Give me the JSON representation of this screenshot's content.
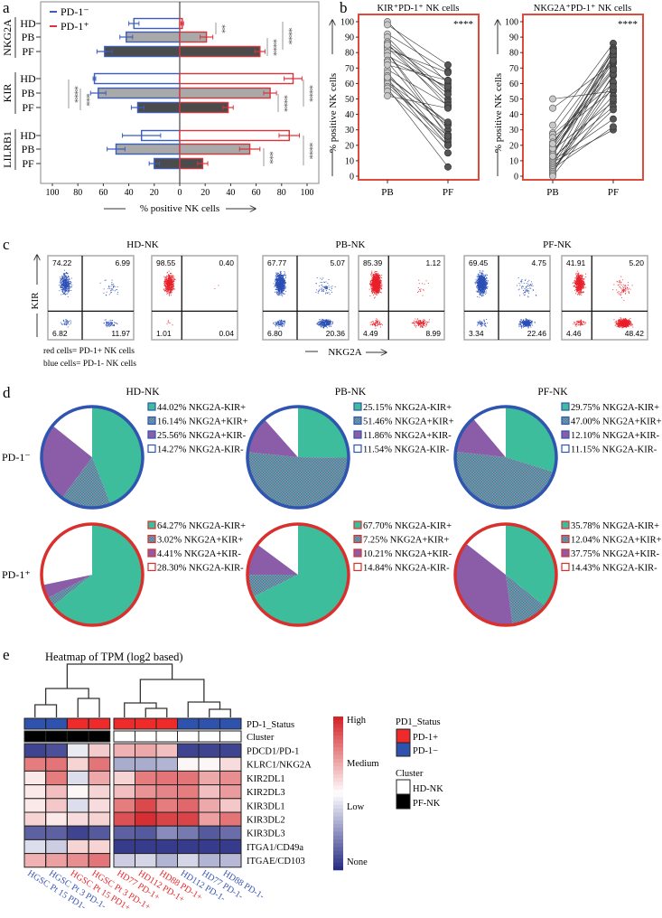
{
  "figure": {
    "panel_letters": [
      "a",
      "b",
      "c",
      "d",
      "e"
    ]
  },
  "chart_data": [
    {
      "type": "bar",
      "panel": "a",
      "orientation": "horizontal-diverging",
      "xlabel": "% positive NK cells",
      "xlim": [
        -100,
        100
      ],
      "xticks": [
        "100",
        "80",
        "60",
        "40",
        "20",
        "0",
        "20",
        "40",
        "60",
        "80",
        "100"
      ],
      "legend": [
        "PD-1⁻",
        "PD-1⁺"
      ],
      "legend_position": "top-left",
      "colors": {
        "PD-1-": "#3a5dbf",
        "PD-1+": "#d9343a",
        "HD": "#ffffff",
        "PB": "#a9a9a9",
        "PF": "#4b4b4b"
      },
      "groups": [
        {
          "marker": "NKG2A",
          "rows": [
            {
              "label": "HD",
              "neg": 36,
              "neg_err": 4,
              "pos": 2,
              "pos_err": 1
            },
            {
              "label": "PB",
              "neg": 42,
              "neg_err": 5,
              "pos": 21,
              "pos_err": 5
            },
            {
              "label": "PF",
              "neg": 59,
              "neg_err": 6,
              "pos": 63,
              "pos_err": 4
            }
          ]
        },
        {
          "marker": "KIR",
          "rows": [
            {
              "label": "HD",
              "neg": 67,
              "neg_err": 1,
              "pos": 89,
              "pos_err": 7
            },
            {
              "label": "PB",
              "neg": 64,
              "neg_err": 6,
              "pos": 71,
              "pos_err": 5
            },
            {
              "label": "PF",
              "neg": 33,
              "neg_err": 5,
              "pos": 38,
              "pos_err": 4
            }
          ]
        },
        {
          "marker": "LILRB1",
          "rows": [
            {
              "label": "HD",
              "neg": 30,
              "neg_err": 15,
              "pos": 86,
              "pos_err": 8
            },
            {
              "label": "PB",
              "neg": 50,
              "neg_err": 7,
              "pos": 55,
              "pos_err": 8
            },
            {
              "label": "PF",
              "neg": 20,
              "neg_err": 4,
              "pos": 18,
              "pos_err": 4
            }
          ]
        }
      ],
      "significance": [
        {
          "marker": "NKG2A",
          "side": "PD-1+",
          "comparison": "HD vs PB",
          "text": "**"
        },
        {
          "marker": "NKG2A",
          "side": "PD-1+",
          "comparison": "PB vs PF",
          "text": "****"
        },
        {
          "marker": "NKG2A",
          "side": "PD-1+",
          "comparison": "HD vs PF",
          "text": "****"
        },
        {
          "marker": "KIR",
          "side": "PD-1-",
          "comparison": "HD vs PF",
          "text": "****"
        },
        {
          "marker": "KIR",
          "side": "PD-1-",
          "comparison": "PB vs PF",
          "text": "***"
        },
        {
          "marker": "KIR",
          "side": "PD-1+",
          "comparison": "PB vs PF",
          "text": "****"
        },
        {
          "marker": "KIR",
          "side": "PD-1+",
          "comparison": "HD vs PF",
          "text": "****"
        },
        {
          "marker": "LILRB1",
          "side": "PD-1+",
          "comparison": "PB vs PF",
          "text": "***"
        },
        {
          "marker": "LILRB1",
          "side": "PD-1+",
          "comparison": "HD vs PF",
          "text": "****"
        }
      ]
    },
    {
      "type": "line",
      "panel": "b",
      "title": "KIR⁺PD-1⁺ NK cells",
      "ylabel": "% positive NK cells",
      "ylim": [
        0,
        100
      ],
      "yticks": [
        "0",
        "10",
        "20",
        "30",
        "40",
        "50",
        "60",
        "70",
        "80",
        "90",
        "100"
      ],
      "categories": [
        "PB",
        "PF"
      ],
      "significance": "****",
      "pairs_PB": [
        100,
        98,
        92,
        90,
        87,
        86,
        84,
        83,
        82,
        80,
        80,
        78,
        75,
        74,
        69,
        67,
        65,
        63,
        62,
        61,
        60,
        58,
        57,
        55,
        52,
        64,
        72,
        85
      ],
      "pairs_PF": [
        60,
        72,
        68,
        50,
        55,
        45,
        62,
        48,
        67,
        30,
        25,
        57,
        58,
        27,
        46,
        22,
        34,
        20,
        15,
        33,
        24,
        26,
        6,
        20,
        44,
        35,
        62,
        53
      ]
    },
    {
      "type": "line",
      "panel": "b",
      "title": "NKG2A⁺PD-1⁺ NK cells",
      "ylabel": "% positive NK cells",
      "ylim": [
        0,
        100
      ],
      "yticks": [
        "0",
        "10",
        "20",
        "30",
        "40",
        "50",
        "60",
        "70",
        "80",
        "90",
        "100"
      ],
      "categories": [
        "PB",
        "PF"
      ],
      "significance": "****",
      "pairs_PB": [
        50,
        44,
        33,
        28,
        27,
        25,
        22,
        20,
        19,
        17,
        16,
        15,
        14,
        12,
        11,
        10,
        9,
        8,
        7,
        6,
        5,
        4,
        3,
        2,
        1,
        0,
        18,
        21,
        13
      ],
      "pairs_PF": [
        55,
        73,
        86,
        80,
        60,
        56,
        70,
        83,
        77,
        48,
        68,
        74,
        82,
        45,
        52,
        37,
        30,
        79,
        65,
        43,
        32,
        61,
        58,
        66,
        78,
        50,
        69,
        75,
        81
      ]
    },
    {
      "type": "scatter",
      "panel": "c",
      "xlabel": "NKG2A",
      "ylabel": "KIR",
      "notes": [
        "red cells= PD-1+ NK cells",
        "blue cells= PD-1- NK cells"
      ],
      "groups": [
        {
          "title": "HD-NK",
          "plots": [
            {
              "cells": "PD-1-",
              "color": "#2b4fb5",
              "q": {
                "ul": "74.22",
                "ur": "6.99",
                "ll": "6.82",
                "lr": "11.97"
              }
            },
            {
              "cells": "PD-1+",
              "color": "#e8202a",
              "q": {
                "ul": "98.55",
                "ur": "0.40",
                "ll": "1.01",
                "lr": "0.04"
              }
            }
          ]
        },
        {
          "title": "PB-NK",
          "plots": [
            {
              "cells": "PD-1-",
              "color": "#2b4fb5",
              "q": {
                "ul": "67.77",
                "ur": "5.07",
                "ll": "6.80",
                "lr": "20.36"
              }
            },
            {
              "cells": "PD-1+",
              "color": "#e8202a",
              "q": {
                "ul": "85.39",
                "ur": "1.12",
                "ll": "4.49",
                "lr": "8.99"
              }
            }
          ]
        },
        {
          "title": "PF-NK",
          "plots": [
            {
              "cells": "PD-1-",
              "color": "#2b4fb5",
              "q": {
                "ul": "69.45",
                "ur": "4.75",
                "ll": "3.34",
                "lr": "22.46"
              }
            },
            {
              "cells": "PD-1+",
              "color": "#e8202a",
              "q": {
                "ul": "41.91",
                "ur": "5.20",
                "ll": "4.46",
                "lr": "48.42"
              }
            }
          ]
        }
      ]
    },
    {
      "type": "pie",
      "panel": "d",
      "columns": [
        "HD-NK",
        "PB-NK",
        "PF-NK"
      ],
      "rows": [
        "PD-1⁻",
        "PD-1⁺"
      ],
      "row_colors": [
        "#2f55b0",
        "#d9302e"
      ],
      "slice_labels": [
        "NKG2A-KIR+",
        "NKG2A+KIR+",
        "NKG2A+KIR-",
        "NKG2A-KIR-"
      ],
      "slice_colors": [
        "#3dbd9c",
        "hatched",
        "#8b5ca8",
        "#ffffff"
      ],
      "pies": [
        [
          {
            "values": [
              44.02,
              16.14,
              25.56,
              14.27
            ],
            "labels": [
              "44.02%",
              "16.14%",
              "25.56%",
              "14.27%"
            ]
          },
          {
            "values": [
              25.15,
              51.46,
              11.86,
              11.54
            ],
            "labels": [
              "25.15%",
              "51.46%",
              "11.86%",
              "11.54%"
            ]
          },
          {
            "values": [
              29.75,
              47.0,
              12.1,
              11.15
            ],
            "labels": [
              "29.75%",
              "47.00%",
              "12.10%",
              "11.15%"
            ]
          }
        ],
        [
          {
            "values": [
              64.27,
              3.02,
              4.41,
              28.3
            ],
            "labels": [
              "64.27%",
              "3.02%",
              "4.41%",
              "28.30%"
            ]
          },
          {
            "values": [
              67.7,
              7.25,
              10.21,
              14.84
            ],
            "labels": [
              "67.70%",
              "7.25%",
              "10.21%",
              "14.84%"
            ]
          },
          {
            "values": [
              35.78,
              12.04,
              37.75,
              14.43
            ],
            "labels": [
              "35.78%",
              "12.04%",
              "37.75%",
              "14.43%"
            ]
          }
        ]
      ]
    },
    {
      "type": "heatmap",
      "panel": "e",
      "title": "Heatmap of TPM (log2 based)",
      "annotation_rows": [
        "PD-1_Status",
        "Cluster"
      ],
      "columns": [
        {
          "label": "HGSC Pt 15 PD1-",
          "status": "PD-1-",
          "cluster": "PF-NK"
        },
        {
          "label": "HGSC Pt 3 PD-1-",
          "status": "PD-1-",
          "cluster": "PF-NK"
        },
        {
          "label": "HGSC Pt 15 PD1+",
          "status": "PD-1+",
          "cluster": "PF-NK"
        },
        {
          "label": "HGSC Pt 3 PD-1+",
          "status": "PD-1+",
          "cluster": "PF-NK"
        },
        {
          "label": "HD77 PD-1+",
          "status": "PD-1+",
          "cluster": "HD-NK"
        },
        {
          "label": "HD112 PD-1+",
          "status": "PD-1+",
          "cluster": "HD-NK"
        },
        {
          "label": "HD88 PD-1+",
          "status": "PD-1+",
          "cluster": "HD-NK"
        },
        {
          "label": "HD112 PD-1-",
          "status": "PD-1-",
          "cluster": "HD-NK"
        },
        {
          "label": "HD77 PD-1-",
          "status": "PD-1-",
          "cluster": "HD-NK"
        },
        {
          "label": "HD88 PD-1-",
          "status": "PD-1-",
          "cluster": "HD-NK"
        }
      ],
      "rows": [
        "PDCD1/PD-1",
        "KLRC1/NKG2A",
        "KIR2DL1",
        "KIR2DL3",
        "KIR3DL1",
        "KIR3DL2",
        "KIR3DL3",
        "ITGA1/CD49a",
        "ITGAE/CD103"
      ],
      "value_scale": "0 = None, 1 = High",
      "values": [
        [
          0.05,
          0.08,
          0.45,
          0.62,
          0.68,
          0.7,
          0.65,
          0.05,
          0.05,
          0.05
        ],
        [
          0.8,
          0.82,
          0.6,
          0.82,
          0.3,
          0.3,
          0.32,
          0.52,
          0.52,
          0.58
        ],
        [
          0.55,
          0.8,
          0.42,
          0.7,
          0.6,
          0.8,
          0.82,
          0.82,
          0.7,
          0.76
        ],
        [
          0.55,
          0.65,
          0.52,
          0.6,
          0.65,
          0.75,
          0.78,
          0.8,
          0.65,
          0.73
        ],
        [
          0.55,
          0.63,
          0.42,
          0.58,
          0.8,
          0.92,
          0.8,
          0.85,
          0.7,
          0.63
        ],
        [
          0.6,
          0.55,
          0.58,
          0.6,
          0.9,
          0.98,
          0.93,
          0.93,
          0.72,
          0.82
        ],
        [
          0.12,
          0.12,
          0.05,
          0.1,
          0.12,
          0.1,
          0.22,
          0.18,
          0.1,
          0.15
        ],
        [
          0.42,
          0.38,
          0.6,
          0.6,
          0.03,
          0.03,
          0.03,
          0.03,
          0.03,
          0.03
        ],
        [
          0.68,
          0.72,
          0.76,
          0.82,
          0.38,
          0.4,
          0.32,
          0.4,
          0.32,
          0.33
        ]
      ],
      "colorbar_labels": [
        "High",
        "Medium",
        "Low",
        "None"
      ],
      "colorbar_colors": {
        "low": "#2a2f85",
        "mid": "#ffffff",
        "high": "#d3262a"
      },
      "legend_status": {
        "title": "PD1_Status",
        "items": [
          {
            "label": "PD-1+",
            "color": "#ee2a2a"
          },
          {
            "label": "PD-1−",
            "color": "#2f52ad"
          }
        ]
      },
      "legend_cluster": {
        "title": "Cluster",
        "items": [
          {
            "label": "HD-NK",
            "color": "#ffffff"
          },
          {
            "label": "PF-NK",
            "color": "#000000"
          }
        ]
      }
    }
  ]
}
